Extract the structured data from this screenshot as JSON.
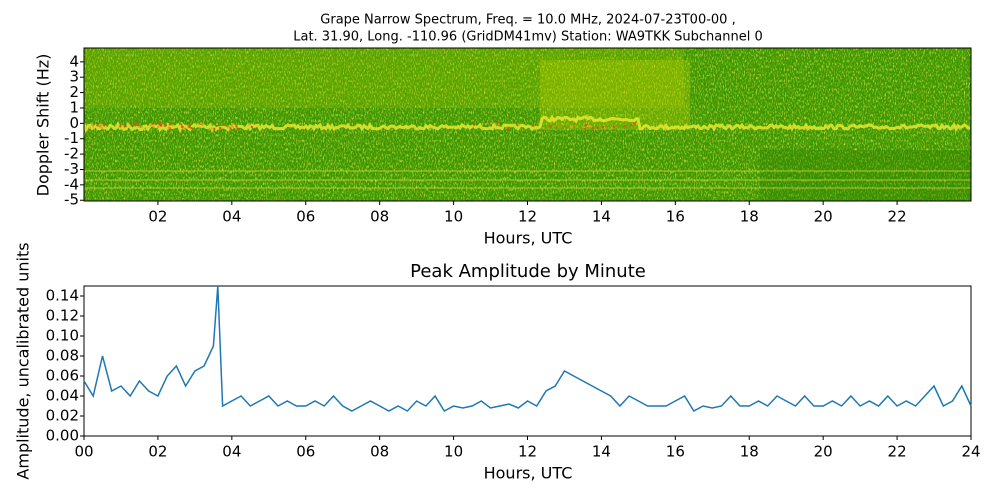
{
  "chart_data": [
    {
      "type": "spectrogram",
      "title": [
        "Grape Narrow Spectrum, Freq. = 10.0 MHz, 2024-07-23T00-00 ,",
        "Lat.  31.90, Long. -110.96 (GridDM41mv) Station: WA9TKK Subchannel 0"
      ],
      "xlabel": "Hours, UTC",
      "ylabel": "Doppler Shift (Hz)",
      "xlim": [
        0,
        24
      ],
      "ylim": [
        -5.05,
        4.9
      ],
      "xticks": [
        {
          "value": 2,
          "label": "02"
        },
        {
          "value": 4,
          "label": "04"
        },
        {
          "value": 6,
          "label": "06"
        },
        {
          "value": 8,
          "label": "08"
        },
        {
          "value": 10,
          "label": "10"
        },
        {
          "value": 12,
          "label": "12"
        },
        {
          "value": 14,
          "label": "14"
        },
        {
          "value": 16,
          "label": "16"
        },
        {
          "value": 18,
          "label": "18"
        },
        {
          "value": 20,
          "label": "20"
        },
        {
          "value": 22,
          "label": "22"
        }
      ],
      "yticks": [
        -5,
        -4,
        -3,
        -2,
        -1,
        0,
        1,
        2,
        3,
        4
      ]
    },
    {
      "type": "line",
      "title": "Peak Amplitude by Minute",
      "xlabel": "Hours, UTC",
      "ylabel": "Amplitude, uncalibrated units",
      "color": "#1f77b4",
      "xlim": [
        0,
        24
      ],
      "ylim": [
        0,
        0.15
      ],
      "xticks": [
        {
          "value": 0,
          "label": "00"
        },
        {
          "value": 2,
          "label": "02"
        },
        {
          "value": 4,
          "label": "04"
        },
        {
          "value": 6,
          "label": "06"
        },
        {
          "value": 8,
          "label": "08"
        },
        {
          "value": 10,
          "label": "10"
        },
        {
          "value": 12,
          "label": "12"
        },
        {
          "value": 14,
          "label": "14"
        },
        {
          "value": 16,
          "label": "16"
        },
        {
          "value": 18,
          "label": "18"
        },
        {
          "value": 20,
          "label": "20"
        },
        {
          "value": 22,
          "label": "22"
        },
        {
          "value": 24,
          "label": "24"
        }
      ],
      "yticks": [
        {
          "value": 0,
          "label": "0.00"
        },
        {
          "value": 0.02,
          "label": "0.02"
        },
        {
          "value": 0.04,
          "label": "0.04"
        },
        {
          "value": 0.06,
          "label": "0.06"
        },
        {
          "value": 0.08,
          "label": "0.08"
        },
        {
          "value": 0.1,
          "label": "0.10"
        },
        {
          "value": 0.12,
          "label": "0.12"
        },
        {
          "value": 0.14,
          "label": "0.14"
        }
      ],
      "x": [
        0,
        0.25,
        0.5,
        0.75,
        1,
        1.25,
        1.5,
        1.75,
        2,
        2.25,
        2.5,
        2.75,
        3,
        3.25,
        3.5,
        3.62,
        3.75,
        4,
        4.25,
        4.5,
        4.75,
        5,
        5.25,
        5.5,
        5.75,
        6,
        6.25,
        6.5,
        6.75,
        7,
        7.25,
        7.5,
        7.75,
        8,
        8.25,
        8.5,
        8.75,
        9,
        9.25,
        9.5,
        9.75,
        10,
        10.25,
        10.5,
        10.75,
        11,
        11.25,
        11.5,
        11.75,
        12,
        12.25,
        12.5,
        12.75,
        13,
        13.25,
        13.5,
        13.75,
        14,
        14.25,
        14.5,
        14.75,
        15,
        15.25,
        15.5,
        15.75,
        16,
        16.25,
        16.5,
        16.75,
        17,
        17.25,
        17.5,
        17.75,
        18,
        18.25,
        18.5,
        18.75,
        19,
        19.25,
        19.5,
        19.75,
        20,
        20.25,
        20.5,
        20.75,
        21,
        21.25,
        21.5,
        21.75,
        22,
        22.25,
        22.5,
        22.75,
        23,
        23.25,
        23.5,
        23.75,
        24
      ],
      "values": [
        0.055,
        0.04,
        0.08,
        0.045,
        0.05,
        0.04,
        0.055,
        0.045,
        0.04,
        0.06,
        0.07,
        0.05,
        0.065,
        0.07,
        0.09,
        0.15,
        0.03,
        0.035,
        0.04,
        0.03,
        0.035,
        0.04,
        0.03,
        0.035,
        0.03,
        0.03,
        0.035,
        0.03,
        0.04,
        0.03,
        0.025,
        0.03,
        0.035,
        0.03,
        0.025,
        0.03,
        0.025,
        0.035,
        0.03,
        0.04,
        0.025,
        0.03,
        0.028,
        0.03,
        0.035,
        0.028,
        0.03,
        0.032,
        0.028,
        0.035,
        0.03,
        0.045,
        0.05,
        0.065,
        0.06,
        0.055,
        0.05,
        0.045,
        0.04,
        0.03,
        0.04,
        0.035,
        0.03,
        0.03,
        0.03,
        0.035,
        0.04,
        0.025,
        0.03,
        0.028,
        0.03,
        0.04,
        0.03,
        0.03,
        0.035,
        0.03,
        0.04,
        0.035,
        0.03,
        0.04,
        0.03,
        0.03,
        0.035,
        0.03,
        0.04,
        0.03,
        0.035,
        0.03,
        0.04,
        0.03,
        0.035,
        0.03,
        0.04,
        0.05,
        0.03,
        0.035,
        0.05,
        0.03
      ]
    }
  ]
}
